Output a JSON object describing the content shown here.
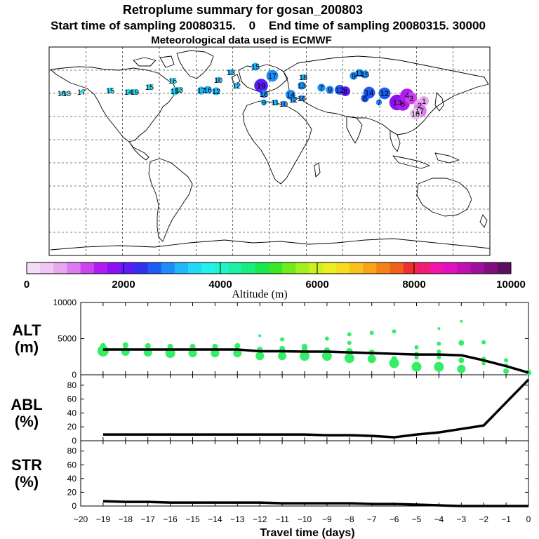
{
  "titles": {
    "line1": "Retroplume summary for gosan_200803",
    "line2": "Start time of sampling 20080315.    0    End time of sampling 20080315. 30000",
    "line3": "Meteorological data used is ECMWF"
  },
  "colorbar": {
    "title": "Altitude (m)",
    "tick_labels": [
      "0",
      "2000",
      "4000",
      "6000",
      "8000",
      "10000"
    ],
    "colors": [
      "#f4dcf4",
      "#eec6f2",
      "#e8a6f0",
      "#dc7cee",
      "#cc44ee",
      "#b01cf0",
      "#8c10f6",
      "#5a1cf6",
      "#3030ee",
      "#1c5cf4",
      "#1e8cf6",
      "#20b8f8",
      "#22daf8",
      "#22f2ea",
      "#20f4c8",
      "#1cf0a4",
      "#18ee7c",
      "#16e850",
      "#38e824",
      "#70ec1c",
      "#a4f01c",
      "#ccf020",
      "#ecee20",
      "#f8da1e",
      "#fac21c",
      "#f8a41a",
      "#f48218",
      "#f06018",
      "#ee3030",
      "#f01c74",
      "#f014a8",
      "#e010c0",
      "#c010b4",
      "#a0109e",
      "#80107c",
      "#5c1060"
    ]
  },
  "map": {
    "trajectory_labels": [
      "18",
      "13",
      "17",
      "15",
      "14",
      "19",
      "15",
      "15",
      "13",
      "16",
      "17",
      "16",
      "12",
      "10",
      "13",
      "12",
      "15",
      "17",
      "19",
      "16",
      "14",
      "13",
      "18",
      "7",
      "9",
      "12",
      "8",
      "9",
      "11",
      "15",
      "14",
      "12",
      "13",
      "6",
      "4",
      "3",
      "2",
      "1",
      "17",
      "18",
      "16",
      "12",
      "11",
      "10",
      "9",
      "7",
      "6"
    ]
  },
  "chart_data": [
    {
      "type": "scatter",
      "panel": "ALT",
      "ylabel_line1": "ALT",
      "ylabel_line2": "(m)",
      "ylim": [
        0,
        10000
      ],
      "yticks": [
        0,
        5000,
        10000
      ],
      "xlim": [
        -20,
        0
      ],
      "mean_line": {
        "x": [
          -19,
          -18,
          -17,
          -16,
          -15,
          -14,
          -13,
          -12,
          -11,
          -10,
          -9,
          -8,
          -7,
          -6,
          -5,
          -4,
          -3,
          -2,
          -1,
          0
        ],
        "y": [
          3500,
          3500,
          3500,
          3500,
          3500,
          3500,
          3500,
          3250,
          3250,
          3200,
          3200,
          3100,
          3000,
          2900,
          2800,
          2800,
          2700,
          2000,
          1200,
          300
        ]
      },
      "clusters": {
        "x": [
          -19,
          -18,
          -17,
          -16,
          -15,
          -14,
          -13,
          -12,
          -11,
          -10,
          -9,
          -8,
          -7,
          -6,
          -5,
          -4,
          -3,
          -2,
          -1,
          0
        ],
        "y": [
          [
            3300,
            4000
          ],
          [
            3200,
            4100
          ],
          [
            3100,
            4000
          ],
          [
            3000,
            3900
          ],
          [
            3000,
            3900
          ],
          [
            3000,
            3900
          ],
          [
            3000,
            4000
          ],
          [
            2600,
            3500,
            5400
          ],
          [
            2600,
            3600,
            4900
          ],
          [
            2600,
            3500,
            3900
          ],
          [
            2600,
            3400,
            5000
          ],
          [
            2300,
            3200,
            4400,
            5600
          ],
          [
            2200,
            3100,
            5800
          ],
          [
            1600,
            2200,
            6000
          ],
          [
            1100,
            2400,
            2900,
            3800
          ],
          [
            1100,
            2400,
            3200,
            4300,
            6400
          ],
          [
            800,
            2000,
            4400,
            7400
          ],
          [
            1600,
            2200,
            4500
          ],
          [
            500,
            1300,
            2000
          ],
          [
            300
          ]
        ],
        "sizes": [
          [
            8,
            4
          ],
          [
            6,
            4
          ],
          [
            6,
            4
          ],
          [
            7,
            4
          ],
          [
            6,
            4
          ],
          [
            6,
            4
          ],
          [
            6,
            4
          ],
          [
            6,
            4,
            2
          ],
          [
            6,
            4,
            3
          ],
          [
            7,
            4,
            4
          ],
          [
            7,
            4,
            3
          ],
          [
            7,
            5,
            3,
            3
          ],
          [
            6,
            4,
            3
          ],
          [
            7,
            4,
            3
          ],
          [
            7,
            3,
            3,
            3
          ],
          [
            7,
            3,
            3,
            3,
            2
          ],
          [
            6,
            4,
            4,
            2
          ],
          [
            3,
            3,
            3
          ],
          [
            4,
            3,
            3
          ],
          [
            4
          ]
        ]
      }
    },
    {
      "type": "line",
      "panel": "ABL",
      "ylabel_line1": "ABL",
      "ylabel_line2": "(%)",
      "ylim": [
        0,
        95
      ],
      "yticks": [
        0,
        20,
        40,
        60,
        80
      ],
      "xlim": [
        -20,
        0
      ],
      "x": [
        -19,
        -18,
        -17,
        -16,
        -15,
        -14,
        -13,
        -12,
        -11,
        -10,
        -9,
        -8,
        -7,
        -6,
        -5,
        -4,
        -3,
        -2,
        -1,
        0
      ],
      "y": [
        9,
        9,
        9,
        9,
        9,
        9,
        9,
        9,
        9,
        9,
        8,
        8,
        7,
        5,
        9,
        12,
        17,
        22,
        55,
        88
      ]
    },
    {
      "type": "line",
      "panel": "STR",
      "ylabel_line1": "STR",
      "ylabel_line2": "(%)",
      "ylim": [
        0,
        95
      ],
      "yticks": [
        0,
        20,
        40,
        60,
        80
      ],
      "xlim": [
        -20,
        0
      ],
      "x": [
        -19,
        -18,
        -17,
        -16,
        -15,
        -14,
        -13,
        -12,
        -11,
        -10,
        -9,
        -8,
        -7,
        -6,
        -5,
        -4,
        -3,
        -2,
        -1,
        0
      ],
      "y": [
        7,
        6,
        6,
        5,
        5,
        5,
        5,
        5,
        4,
        4,
        4,
        4,
        3,
        3,
        2,
        1,
        0,
        0,
        0,
        0
      ],
      "xticks": [
        -20,
        -19,
        -18,
        -17,
        -16,
        -15,
        -14,
        -13,
        -12,
        -11,
        -10,
        -9,
        -8,
        -7,
        -6,
        -5,
        -4,
        -3,
        -2,
        -1,
        0
      ],
      "xlabel": "Travel time (days)"
    }
  ]
}
